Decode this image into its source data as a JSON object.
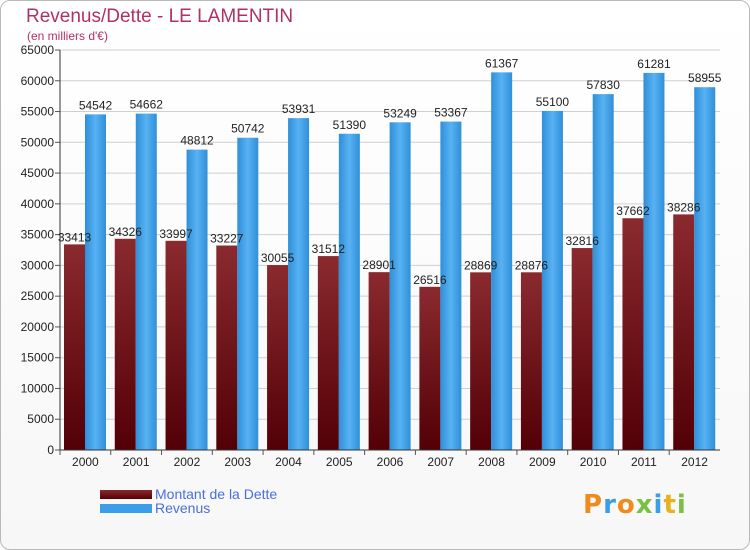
{
  "title": "Revenus/Dette - LE LAMENTIN",
  "subtitle": "(en milliers d'€)",
  "logo_text": "Proxiti",
  "chart_data": {
    "type": "bar",
    "categories": [
      "2000",
      "2001",
      "2002",
      "2003",
      "2004",
      "2005",
      "2006",
      "2007",
      "2008",
      "2009",
      "2010",
      "2011",
      "2012"
    ],
    "ylim": [
      0,
      65000
    ],
    "yticks": [
      0,
      5000,
      10000,
      15000,
      20000,
      25000,
      30000,
      35000,
      40000,
      45000,
      50000,
      55000,
      60000,
      65000
    ],
    "grid": true,
    "legend_position": "bottom-left",
    "series": [
      {
        "name": "Montant de la Dette",
        "color": "#6b0d12",
        "values": [
          33413,
          34326,
          33997,
          33227,
          30055,
          31512,
          28901,
          26516,
          28869,
          28876,
          32816,
          37662,
          38286
        ],
        "labels": [
          "33413",
          "34326",
          "33997",
          "33227",
          "30055",
          "31512",
          "28901",
          "26516",
          "28869",
          "28876",
          "32816",
          "37662",
          "38286"
        ]
      },
      {
        "name": "Revenus",
        "color": "#3a9ee8",
        "values": [
          54542,
          54662,
          48812,
          50742,
          53931,
          51390,
          53249,
          53367,
          61367,
          55100,
          57830,
          61281,
          58955
        ],
        "labels": [
          "54542",
          "54662",
          "48812",
          "50742",
          "53931",
          "51390",
          "53249",
          "53367",
          "61367",
          "55100",
          "57830",
          "61281",
          "58955"
        ]
      }
    ]
  }
}
